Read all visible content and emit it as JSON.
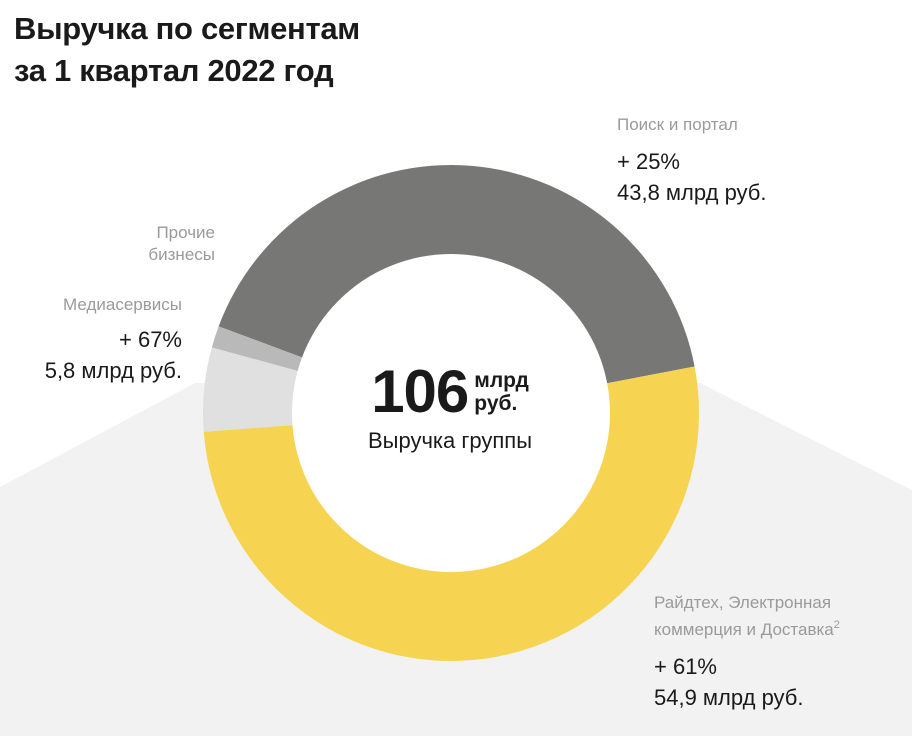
{
  "chart_data": {
    "type": "donut",
    "title_lines": [
      "Выручка по сегментам",
      "за 1 квартал 2022 год"
    ],
    "center": {
      "value": "106",
      "unit_lines": [
        "млрд",
        "руб."
      ],
      "caption": "Выручка группы"
    },
    "series": [
      {
        "name": "Поиск и портал",
        "growth": "+ 25%",
        "value_label": "43,8 млрд руб.",
        "value": 43.8,
        "color": "#777776"
      },
      {
        "name": "Райдтех, Электронная коммерция и Доставка",
        "name_lines": [
          "Райдтех, Электронная",
          "коммерция и Доставка"
        ],
        "footnote": "2",
        "growth": "+ 61%",
        "value_label": "54,9 млрд руб.",
        "value": 54.9,
        "color": "#f6d451"
      },
      {
        "name": "Медиасервисы",
        "growth": "+ 67%",
        "value_label": "5,8 млрд руб.",
        "value": 5.8,
        "color": "#e0e0e0"
      },
      {
        "name": "Прочие бизнесы",
        "name_lines": [
          "Прочие",
          "бизнесы"
        ],
        "value": 1.5,
        "color": "#b9b9b9"
      }
    ],
    "colors": {
      "background_wedge": "#f2f2f2",
      "text": "#1a1a1a",
      "muted_text": "#9a9a9a"
    }
  }
}
